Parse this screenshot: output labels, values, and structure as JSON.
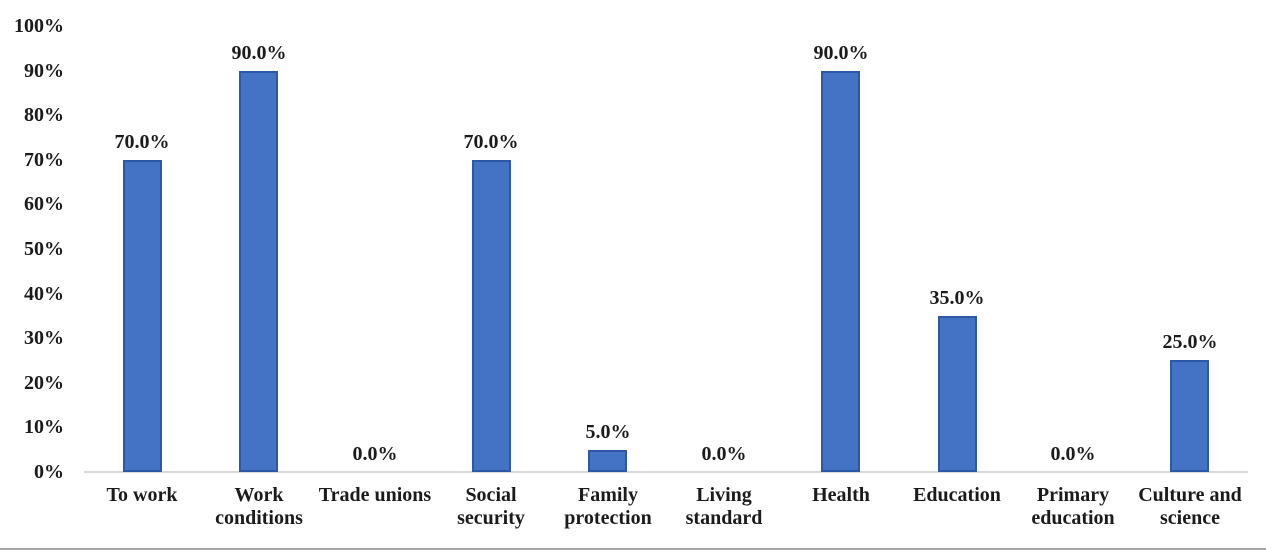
{
  "chart_data": {
    "type": "bar",
    "categories": [
      "To work",
      "Work conditions",
      "Trade unions",
      "Social security",
      "Family protection",
      "Living standard",
      "Health",
      "Education",
      "Primary education",
      "Culture and science"
    ],
    "values": [
      70,
      90,
      0,
      70,
      5,
      0,
      90,
      35,
      0,
      25
    ],
    "data_labels": [
      "70.0%",
      "90.0%",
      "0.0%",
      "70.0%",
      "5.0%",
      "0.0%",
      "90.0%",
      "35.0%",
      "0.0%",
      "25.0%"
    ],
    "y_ticks": [
      {
        "label": "100%",
        "value": 100
      },
      {
        "label": "90%",
        "value": 90
      },
      {
        "label": "80%",
        "value": 80
      },
      {
        "label": "70%",
        "value": 70
      },
      {
        "label": "60%",
        "value": 60
      },
      {
        "label": "50%",
        "value": 50
      },
      {
        "label": "40%",
        "value": 40
      },
      {
        "label": "30%",
        "value": 30
      },
      {
        "label": "20%",
        "value": 20
      },
      {
        "label": "10%",
        "value": 10
      },
      {
        "label": "0%",
        "value": 0
      }
    ],
    "ylim": [
      0,
      100
    ],
    "grid": false,
    "legend": "none",
    "bar_color": "#4472C4",
    "bar_border_color": "#2C58A6",
    "axis_line_color": "#D9D9D9",
    "bottom_rule_color": "#A6A6A6",
    "text_color": "#1B1B1B",
    "background_color": "#FFFFFF"
  }
}
